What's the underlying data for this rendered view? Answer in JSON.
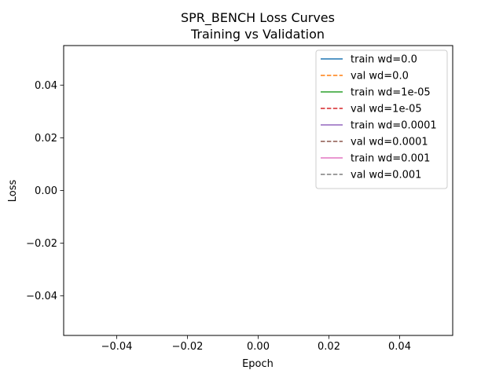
{
  "chart_data": {
    "type": "line",
    "title": "SPR_BENCH Loss Curves",
    "subtitle": "Training vs Validation",
    "xlabel": "Epoch",
    "ylabel": "Loss",
    "xlim": [
      -0.055,
      0.055
    ],
    "ylim": [
      -0.055,
      0.055
    ],
    "xticks": [
      {
        "value": -0.04,
        "label": "−0.04"
      },
      {
        "value": -0.02,
        "label": "−0.02"
      },
      {
        "value": 0.0,
        "label": "0.00"
      },
      {
        "value": 0.02,
        "label": "0.02"
      },
      {
        "value": 0.04,
        "label": "0.04"
      }
    ],
    "yticks": [
      {
        "value": 0.04,
        "label": "0.04"
      },
      {
        "value": 0.02,
        "label": "0.02"
      },
      {
        "value": 0.0,
        "label": "0.00"
      },
      {
        "value": -0.02,
        "label": "−0.02"
      },
      {
        "value": -0.04,
        "label": "−0.04"
      }
    ],
    "grid": false,
    "legend_position": "top-right",
    "series": [
      {
        "name": "train wd=0.0",
        "color": "#1f77b4",
        "style": "solid",
        "x": [],
        "y": []
      },
      {
        "name": "val wd=0.0",
        "color": "#ff7f0e",
        "style": "dashed",
        "x": [],
        "y": []
      },
      {
        "name": "train wd=1e-05",
        "color": "#2ca02c",
        "style": "solid",
        "x": [],
        "y": []
      },
      {
        "name": "val wd=1e-05",
        "color": "#d62728",
        "style": "dashed",
        "x": [],
        "y": []
      },
      {
        "name": "train wd=0.0001",
        "color": "#9467bd",
        "style": "solid",
        "x": [],
        "y": []
      },
      {
        "name": "val wd=0.0001",
        "color": "#8c564b",
        "style": "dashed",
        "x": [],
        "y": []
      },
      {
        "name": "train wd=0.001",
        "color": "#e377c2",
        "style": "solid",
        "x": [],
        "y": []
      },
      {
        "name": "val wd=0.001",
        "color": "#7f7f7f",
        "style": "dashed",
        "x": [],
        "y": []
      }
    ]
  }
}
